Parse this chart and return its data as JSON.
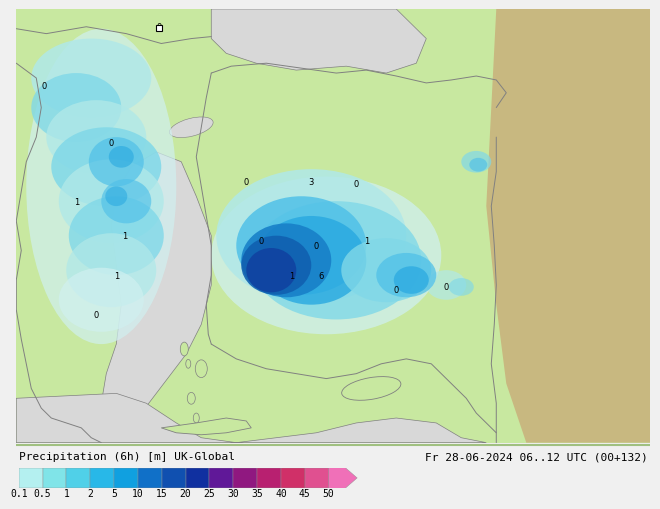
{
  "title_left": "Precipitation (6h) [m] UK-Global",
  "title_right": "Fr 28-06-2024 06..12 UTC (00+132)",
  "colorbar_labels": [
    "0.1",
    "0.5",
    "1",
    "2",
    "5",
    "10",
    "15",
    "20",
    "25",
    "30",
    "35",
    "40",
    "45",
    "50"
  ],
  "colorbar_colors": [
    "#b4f0f0",
    "#80e4e8",
    "#50d0e8",
    "#28b8e8",
    "#10a0e0",
    "#1070c8",
    "#1050b0",
    "#1030a0",
    "#601898",
    "#901880",
    "#b82070",
    "#d03068",
    "#e05090",
    "#f070b8"
  ],
  "bg_color": "#f0f0f0",
  "land_green": "#c8e8a0",
  "land_desert": "#c8b880",
  "water_gray": "#d8d8d8",
  "coast_color": "#808080",
  "prec_very_light": "#d0f0f0",
  "prec_light1": "#b0e8e8",
  "prec_light2": "#80d8e8",
  "prec_med1": "#50c0e8",
  "prec_med2": "#28a8e0",
  "prec_dark1": "#1880c8",
  "prec_dark2": "#1060b0",
  "prec_dark3": "#1040a0",
  "font_size_label": 8,
  "font_size_tick": 7,
  "font_size_station": 6
}
